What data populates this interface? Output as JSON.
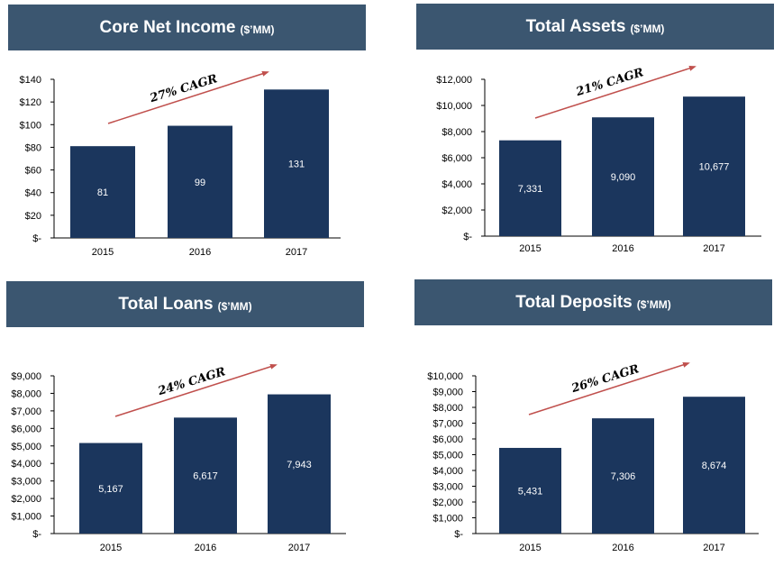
{
  "colors": {
    "title_bar": "#3b5670",
    "bar": "#1b365d",
    "arrow": "#c0504d",
    "axis": "#000000"
  },
  "chart_data": [
    {
      "type": "bar",
      "title": "Core Net Income",
      "unit": "($’MM)",
      "categories": [
        "2015",
        "2016",
        "2017"
      ],
      "values": [
        81,
        99,
        131
      ],
      "value_labels": [
        "81",
        "99",
        "131"
      ],
      "ylim": [
        0,
        140
      ],
      "y_ticks": [
        0,
        20,
        40,
        60,
        80,
        100,
        120,
        140
      ],
      "y_tick_labels": [
        "$-",
        "$20",
        "$40",
        "$60",
        "$80",
        "$100",
        "$120",
        "$140"
      ],
      "annotation": "27% CAGR"
    },
    {
      "type": "bar",
      "title": "Total Assets",
      "unit": "($’MM)",
      "categories": [
        "2015",
        "2016",
        "2017"
      ],
      "values": [
        7331,
        9090,
        10677
      ],
      "value_labels": [
        "7,331",
        "9,090",
        "10,677"
      ],
      "ylim": [
        0,
        12000
      ],
      "y_ticks": [
        0,
        2000,
        4000,
        6000,
        8000,
        10000,
        12000
      ],
      "y_tick_labels": [
        "$-",
        "$2,000",
        "$4,000",
        "$6,000",
        "$8,000",
        "$10,000",
        "$12,000"
      ],
      "annotation": "21% CAGR"
    },
    {
      "type": "bar",
      "title": "Total Loans",
      "unit": "($’MM)",
      "categories": [
        "2015",
        "2016",
        "2017"
      ],
      "values": [
        5167,
        6617,
        7943
      ],
      "value_labels": [
        "5,167",
        "6,617",
        "7,943"
      ],
      "ylim": [
        0,
        9000
      ],
      "y_ticks": [
        0,
        1000,
        2000,
        3000,
        4000,
        5000,
        6000,
        7000,
        8000,
        9000
      ],
      "y_tick_labels": [
        "$-",
        "$1,000",
        "$2,000",
        "$3,000",
        "$4,000",
        "$5,000",
        "$6,000",
        "$7,000",
        "$8,000",
        "$9,000"
      ],
      "annotation": "24% CAGR"
    },
    {
      "type": "bar",
      "title": "Total Deposits",
      "unit": "($’MM)",
      "categories": [
        "2015",
        "2016",
        "2017"
      ],
      "values": [
        5431,
        7306,
        8674
      ],
      "value_labels": [
        "5,431",
        "7,306",
        "8,674"
      ],
      "ylim": [
        0,
        10000
      ],
      "y_ticks": [
        0,
        1000,
        2000,
        3000,
        4000,
        5000,
        6000,
        7000,
        8000,
        9000,
        10000
      ],
      "y_tick_labels": [
        "$-",
        "$1,000",
        "$2,000",
        "$3,000",
        "$4,000",
        "$5,000",
        "$6,000",
        "$7,000",
        "$8,000",
        "$9,000",
        "$10,000"
      ],
      "annotation": "26% CAGR"
    }
  ]
}
